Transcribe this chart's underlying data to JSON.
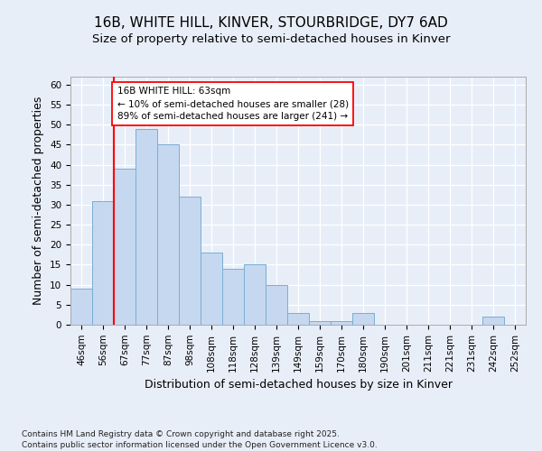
{
  "title1": "16B, WHITE HILL, KINVER, STOURBRIDGE, DY7 6AD",
  "title2": "Size of property relative to semi-detached houses in Kinver",
  "xlabel": "Distribution of semi-detached houses by size in Kinver",
  "ylabel": "Number of semi-detached properties",
  "categories": [
    "46sqm",
    "56sqm",
    "67sqm",
    "77sqm",
    "87sqm",
    "98sqm",
    "108sqm",
    "118sqm",
    "128sqm",
    "139sqm",
    "149sqm",
    "159sqm",
    "170sqm",
    "180sqm",
    "190sqm",
    "201sqm",
    "211sqm",
    "221sqm",
    "231sqm",
    "242sqm",
    "252sqm"
  ],
  "values": [
    9,
    31,
    39,
    49,
    45,
    32,
    18,
    14,
    15,
    10,
    3,
    1,
    1,
    3,
    0,
    0,
    0,
    0,
    0,
    2,
    0
  ],
  "bar_color": "#c5d8f0",
  "bar_edge_color": "#7aadd4",
  "ylim": [
    0,
    62
  ],
  "yticks": [
    0,
    5,
    10,
    15,
    20,
    25,
    30,
    35,
    40,
    45,
    50,
    55,
    60
  ],
  "annotation_title": "16B WHITE HILL: 63sqm",
  "annotation_line1": "← 10% of semi-detached houses are smaller (28)",
  "annotation_line2": "89% of semi-detached houses are larger (241) →",
  "footer": "Contains HM Land Registry data © Crown copyright and database right 2025.\nContains public sector information licensed under the Open Government Licence v3.0.",
  "background_color": "#e8eef8",
  "grid_color": "#ffffff",
  "prop_line_bar_index": 1.5,
  "title_fontsize": 11,
  "subtitle_fontsize": 9.5,
  "axis_label_fontsize": 9,
  "tick_fontsize": 7.5,
  "footer_fontsize": 6.5
}
